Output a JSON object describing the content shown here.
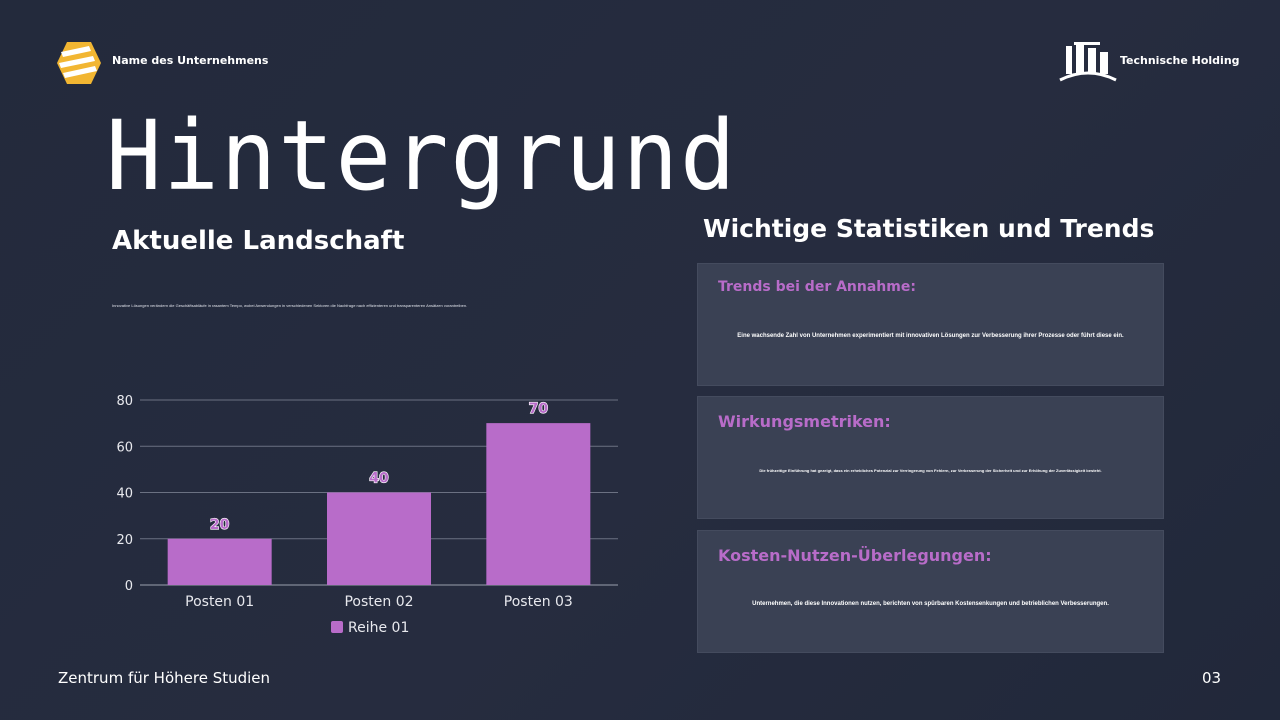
{
  "header": {
    "company_name": "Name des Unternehmens",
    "holding_name": "Technische Holding"
  },
  "left": {
    "title": "Hintergrund",
    "subtitle": "Aktuelle Landschaft",
    "body": "Innovative Lösungen verändern die Geschäftsabläufe in rasantem Tempo, wobei Anwendungen in verschiedenen Sektoren die Nachfrage nach effizienteren und transparenteren Ansätzen vorantreiben."
  },
  "right": {
    "title": "Wichtige Statistiken und Trends",
    "cards": [
      {
        "heading": "Trends bei der Annahme:",
        "text": "Eine wachsende Zahl von Unternehmen experimentiert mit innovativen Lösungen zur Verbesserung ihrer Prozesse oder führt diese ein."
      },
      {
        "heading": "Wirkungsmetriken:",
        "text": "Die frühzeitige Einführung hat gezeigt, dass ein erhebliches Potenzial zur Verringerung von Fehlern, zur Verbesserung der Sicherheit und zur Erhöhung der Zuverlässigkeit besteht."
      },
      {
        "heading": "Kosten-Nutzen-Überlegungen:",
        "text": "Unternehmen, die diese Innovationen nutzen, berichten von spürbaren Kostensenkungen und betrieblichen Verbesserungen."
      }
    ]
  },
  "footer": {
    "institution": "Zentrum für Höhere Studien",
    "page_number": "03"
  },
  "colors": {
    "accent": "#b86cc9",
    "bar": "#b86cc9",
    "logo_yellow": "#f2b632"
  },
  "chart_data": {
    "type": "bar",
    "categories": [
      "Posten 01",
      "Posten 02",
      "Posten 03"
    ],
    "series": [
      {
        "name": "Reihe 01",
        "values": [
          20,
          40,
          70
        ]
      }
    ],
    "yticks": [
      "0",
      "20",
      "40",
      "60",
      "80"
    ],
    "ylim": [
      0,
      80
    ],
    "grid": true,
    "legend": "bottom",
    "data_labels": true
  }
}
